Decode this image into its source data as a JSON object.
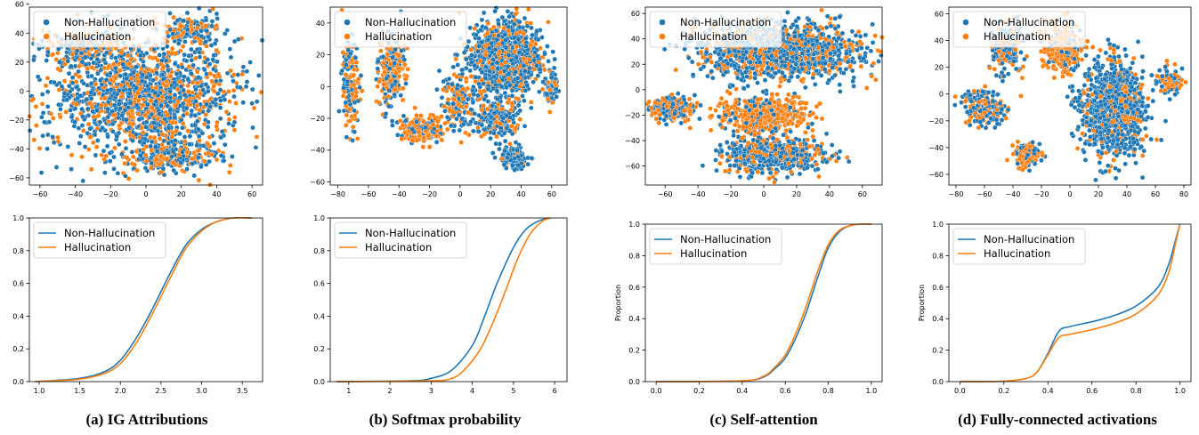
{
  "colors": {
    "non_hallucination": "#1f77b4",
    "hallucination": "#ff7f0e"
  },
  "captions": [
    "(a) IG Attributions",
    "(b) Softmax probability",
    "(c) Self-attention",
    "(d) Fully-connected activations"
  ],
  "chart_data": [
    {
      "type": "scatter",
      "panel": "a-top",
      "xlim": [
        -66,
        66
      ],
      "ylim": [
        -65,
        58
      ],
      "xticks": [
        -60,
        -40,
        -20,
        0,
        20,
        40,
        60
      ],
      "yticks": [
        -60,
        -40,
        -20,
        0,
        20,
        40,
        60
      ],
      "legend": {
        "placement": "top-left",
        "entries": [
          "Non-Hallucination",
          "Hallucination"
        ]
      },
      "clusters": [
        {
          "cx": 0,
          "cy": -5,
          "rx": 58,
          "ry": 45,
          "n": 1500,
          "orange_ratio": 0.35
        },
        {
          "cx": 25,
          "cy": 42,
          "rx": 18,
          "ry": 12,
          "n": 150,
          "orange_ratio": 0.4
        },
        {
          "cx": -35,
          "cy": 30,
          "rx": 25,
          "ry": 15,
          "n": 200,
          "orange_ratio": 0.5
        },
        {
          "cx": 15,
          "cy": -45,
          "rx": 30,
          "ry": 12,
          "n": 200,
          "orange_ratio": 0.45
        }
      ]
    },
    {
      "type": "scatter",
      "panel": "b-top",
      "xlim": [
        -85,
        70
      ],
      "ylim": [
        -62,
        50
      ],
      "xticks": [
        -80,
        -60,
        -40,
        -20,
        0,
        20,
        40,
        60
      ],
      "yticks": [
        -60,
        -40,
        -20,
        0,
        20,
        40
      ],
      "legend": {
        "placement": "top-left",
        "entries": [
          "Non-Hallucination",
          "Hallucination"
        ]
      },
      "clusters": [
        {
          "cx": -72,
          "cy": 0,
          "rx": 6,
          "ry": 30,
          "n": 150,
          "orange_ratio": 0.5
        },
        {
          "cx": -45,
          "cy": 10,
          "rx": 10,
          "ry": 25,
          "n": 220,
          "orange_ratio": 0.6
        },
        {
          "cx": -25,
          "cy": -27,
          "rx": 18,
          "ry": 8,
          "n": 220,
          "orange_ratio": 0.7
        },
        {
          "cx": 0,
          "cy": -10,
          "rx": 15,
          "ry": 20,
          "n": 150,
          "orange_ratio": 0.4
        },
        {
          "cx": 30,
          "cy": 18,
          "rx": 25,
          "ry": 25,
          "n": 1000,
          "orange_ratio": 0.25
        },
        {
          "cx": 25,
          "cy": -20,
          "rx": 15,
          "ry": 12,
          "n": 250,
          "orange_ratio": 0.35
        },
        {
          "cx": 35,
          "cy": -45,
          "rx": 10,
          "ry": 8,
          "n": 150,
          "orange_ratio": 0.15
        },
        {
          "cx": 60,
          "cy": 0,
          "rx": 5,
          "ry": 10,
          "n": 80,
          "orange_ratio": 0.3
        }
      ]
    },
    {
      "type": "scatter",
      "panel": "c-top",
      "xlim": [
        -72,
        72
      ],
      "ylim": [
        -75,
        65
      ],
      "xticks": [
        -60,
        -40,
        -20,
        0,
        20,
        40,
        60
      ],
      "yticks": [
        -60,
        -40,
        -20,
        0,
        20,
        40,
        60
      ],
      "legend": {
        "placement": "top-left",
        "entries": [
          "Non-Hallucination",
          "Hallucination"
        ]
      },
      "clusters": [
        {
          "cx": 10,
          "cy": 30,
          "rx": 55,
          "ry": 25,
          "n": 1200,
          "orange_ratio": 0.3
        },
        {
          "cx": -55,
          "cy": -15,
          "rx": 15,
          "ry": 10,
          "n": 250,
          "orange_ratio": 0.5
        },
        {
          "cx": 0,
          "cy": -20,
          "rx": 30,
          "ry": 15,
          "n": 500,
          "orange_ratio": 0.8
        },
        {
          "cx": 5,
          "cy": -52,
          "rx": 35,
          "ry": 15,
          "n": 500,
          "orange_ratio": 0.3
        }
      ]
    },
    {
      "type": "scatter",
      "panel": "d-top",
      "xlim": [
        -85,
        85
      ],
      "ylim": [
        -68,
        65
      ],
      "xticks": [
        -80,
        -60,
        -40,
        -20,
        0,
        20,
        40,
        60,
        80
      ],
      "yticks": [
        -60,
        -40,
        -20,
        0,
        20,
        40,
        60
      ],
      "legend": {
        "placement": "top-left",
        "entries": [
          "Non-Hallucination",
          "Hallucination"
        ]
      },
      "clusters": [
        {
          "cx": -45,
          "cy": 35,
          "rx": 12,
          "ry": 20,
          "n": 250,
          "orange_ratio": 0.4
        },
        {
          "cx": -5,
          "cy": 35,
          "rx": 15,
          "ry": 20,
          "n": 300,
          "orange_ratio": 0.85
        },
        {
          "cx": 30,
          "cy": -10,
          "rx": 25,
          "ry": 40,
          "n": 1000,
          "orange_ratio": 0.2
        },
        {
          "cx": -60,
          "cy": -10,
          "rx": 15,
          "ry": 15,
          "n": 200,
          "orange_ratio": 0.4
        },
        {
          "cx": -30,
          "cy": -45,
          "rx": 10,
          "ry": 10,
          "n": 120,
          "orange_ratio": 0.6
        },
        {
          "cx": 70,
          "cy": 10,
          "rx": 10,
          "ry": 10,
          "n": 100,
          "orange_ratio": 0.5
        }
      ]
    },
    {
      "type": "line",
      "panel": "a-bottom",
      "xlim": [
        0.88,
        3.75
      ],
      "ylim": [
        0,
        1
      ],
      "xticks": [
        1.0,
        1.5,
        2.0,
        2.5,
        3.0,
        3.5
      ],
      "yticks": [
        0.0,
        0.2,
        0.4,
        0.6,
        0.8,
        1.0
      ],
      "ylabel": "",
      "legend": {
        "placement": "top-left",
        "entries": [
          "Non-Hallucination",
          "Hallucination"
        ]
      },
      "series": [
        {
          "name": "Non-Hallucination",
          "x": [
            0.95,
            1.5,
            1.8,
            2.0,
            2.2,
            2.4,
            2.6,
            2.8,
            3.0,
            3.2,
            3.4,
            3.62
          ],
          "y": [
            0.0,
            0.02,
            0.06,
            0.13,
            0.27,
            0.45,
            0.65,
            0.83,
            0.93,
            0.98,
            1.0,
            1.0
          ]
        },
        {
          "name": "Hallucination",
          "x": [
            0.95,
            1.5,
            1.8,
            2.0,
            2.2,
            2.4,
            2.6,
            2.8,
            3.0,
            3.2,
            3.4,
            3.62
          ],
          "y": [
            0.0,
            0.015,
            0.05,
            0.11,
            0.24,
            0.42,
            0.62,
            0.81,
            0.92,
            0.98,
            1.0,
            1.0
          ]
        }
      ]
    },
    {
      "type": "line",
      "panel": "b-bottom",
      "xlim": [
        0.55,
        6.3
      ],
      "ylim": [
        0,
        1
      ],
      "xticks": [
        1,
        2,
        3,
        4,
        5,
        6
      ],
      "yticks": [
        0.0,
        0.2,
        0.4,
        0.6,
        0.8,
        1.0
      ],
      "ylabel": "",
      "legend": {
        "placement": "top-left",
        "entries": [
          "Non-Hallucination",
          "Hallucination"
        ]
      },
      "series": [
        {
          "name": "Non-Hallucination",
          "x": [
            0.7,
            2.5,
            3.0,
            3.5,
            4.0,
            4.3,
            4.6,
            5.0,
            5.3,
            5.6,
            5.85
          ],
          "y": [
            0.0,
            0.005,
            0.02,
            0.07,
            0.22,
            0.4,
            0.6,
            0.82,
            0.93,
            0.98,
            1.0
          ]
        },
        {
          "name": "Hallucination",
          "x": [
            0.7,
            3.0,
            3.5,
            3.8,
            4.2,
            4.5,
            4.8,
            5.1,
            5.4,
            5.7,
            5.9
          ],
          "y": [
            0.0,
            0.005,
            0.02,
            0.07,
            0.2,
            0.36,
            0.55,
            0.75,
            0.9,
            0.98,
            1.0
          ]
        }
      ]
    },
    {
      "type": "line",
      "panel": "c-bottom",
      "xlim": [
        -0.05,
        1.05
      ],
      "ylim": [
        0,
        1
      ],
      "xticks": [
        0.0,
        0.2,
        0.4,
        0.6,
        0.8,
        1.0
      ],
      "yticks": [
        0.0,
        0.2,
        0.4,
        0.6,
        0.8,
        1.0
      ],
      "ylabel": "Proportion",
      "legend": {
        "placement": "top-left",
        "entries": [
          "Non-Hallucination",
          "Hallucination"
        ]
      },
      "series": [
        {
          "name": "Non-Hallucination",
          "x": [
            0.0,
            0.4,
            0.5,
            0.55,
            0.6,
            0.65,
            0.7,
            0.75,
            0.8,
            0.85,
            0.9,
            0.95,
            1.0
          ],
          "y": [
            0.0,
            0.005,
            0.03,
            0.08,
            0.15,
            0.28,
            0.45,
            0.66,
            0.85,
            0.95,
            0.99,
            1.0,
            1.0
          ]
        },
        {
          "name": "Hallucination",
          "x": [
            0.0,
            0.4,
            0.5,
            0.55,
            0.6,
            0.65,
            0.7,
            0.75,
            0.8,
            0.85,
            0.9,
            0.95,
            1.0
          ],
          "y": [
            0.0,
            0.005,
            0.035,
            0.09,
            0.17,
            0.31,
            0.49,
            0.7,
            0.87,
            0.96,
            0.99,
            1.0,
            1.0
          ]
        }
      ]
    },
    {
      "type": "line",
      "panel": "d-bottom",
      "xlim": [
        -0.05,
        1.05
      ],
      "ylim": [
        0,
        1
      ],
      "xticks": [
        0.0,
        0.2,
        0.4,
        0.6,
        0.8,
        1.0
      ],
      "yticks": [
        0.0,
        0.2,
        0.4,
        0.6,
        0.8,
        1.0
      ],
      "ylabel": "Proportion",
      "legend": {
        "placement": "top-left",
        "entries": [
          "Non-Hallucination",
          "Hallucination"
        ]
      },
      "series": [
        {
          "name": "Non-Hallucination",
          "x": [
            0.0,
            0.2,
            0.3,
            0.35,
            0.4,
            0.45,
            0.5,
            0.6,
            0.7,
            0.8,
            0.9,
            0.95,
            0.98,
            1.0
          ],
          "y": [
            0.0,
            0.003,
            0.02,
            0.06,
            0.18,
            0.32,
            0.35,
            0.38,
            0.42,
            0.48,
            0.6,
            0.75,
            0.9,
            1.0
          ]
        },
        {
          "name": "Hallucination",
          "x": [
            0.0,
            0.2,
            0.3,
            0.35,
            0.4,
            0.45,
            0.5,
            0.6,
            0.7,
            0.8,
            0.9,
            0.95,
            0.98,
            1.0
          ],
          "y": [
            0.0,
            0.003,
            0.02,
            0.06,
            0.17,
            0.28,
            0.3,
            0.33,
            0.37,
            0.43,
            0.55,
            0.7,
            0.88,
            1.0
          ]
        }
      ]
    }
  ]
}
